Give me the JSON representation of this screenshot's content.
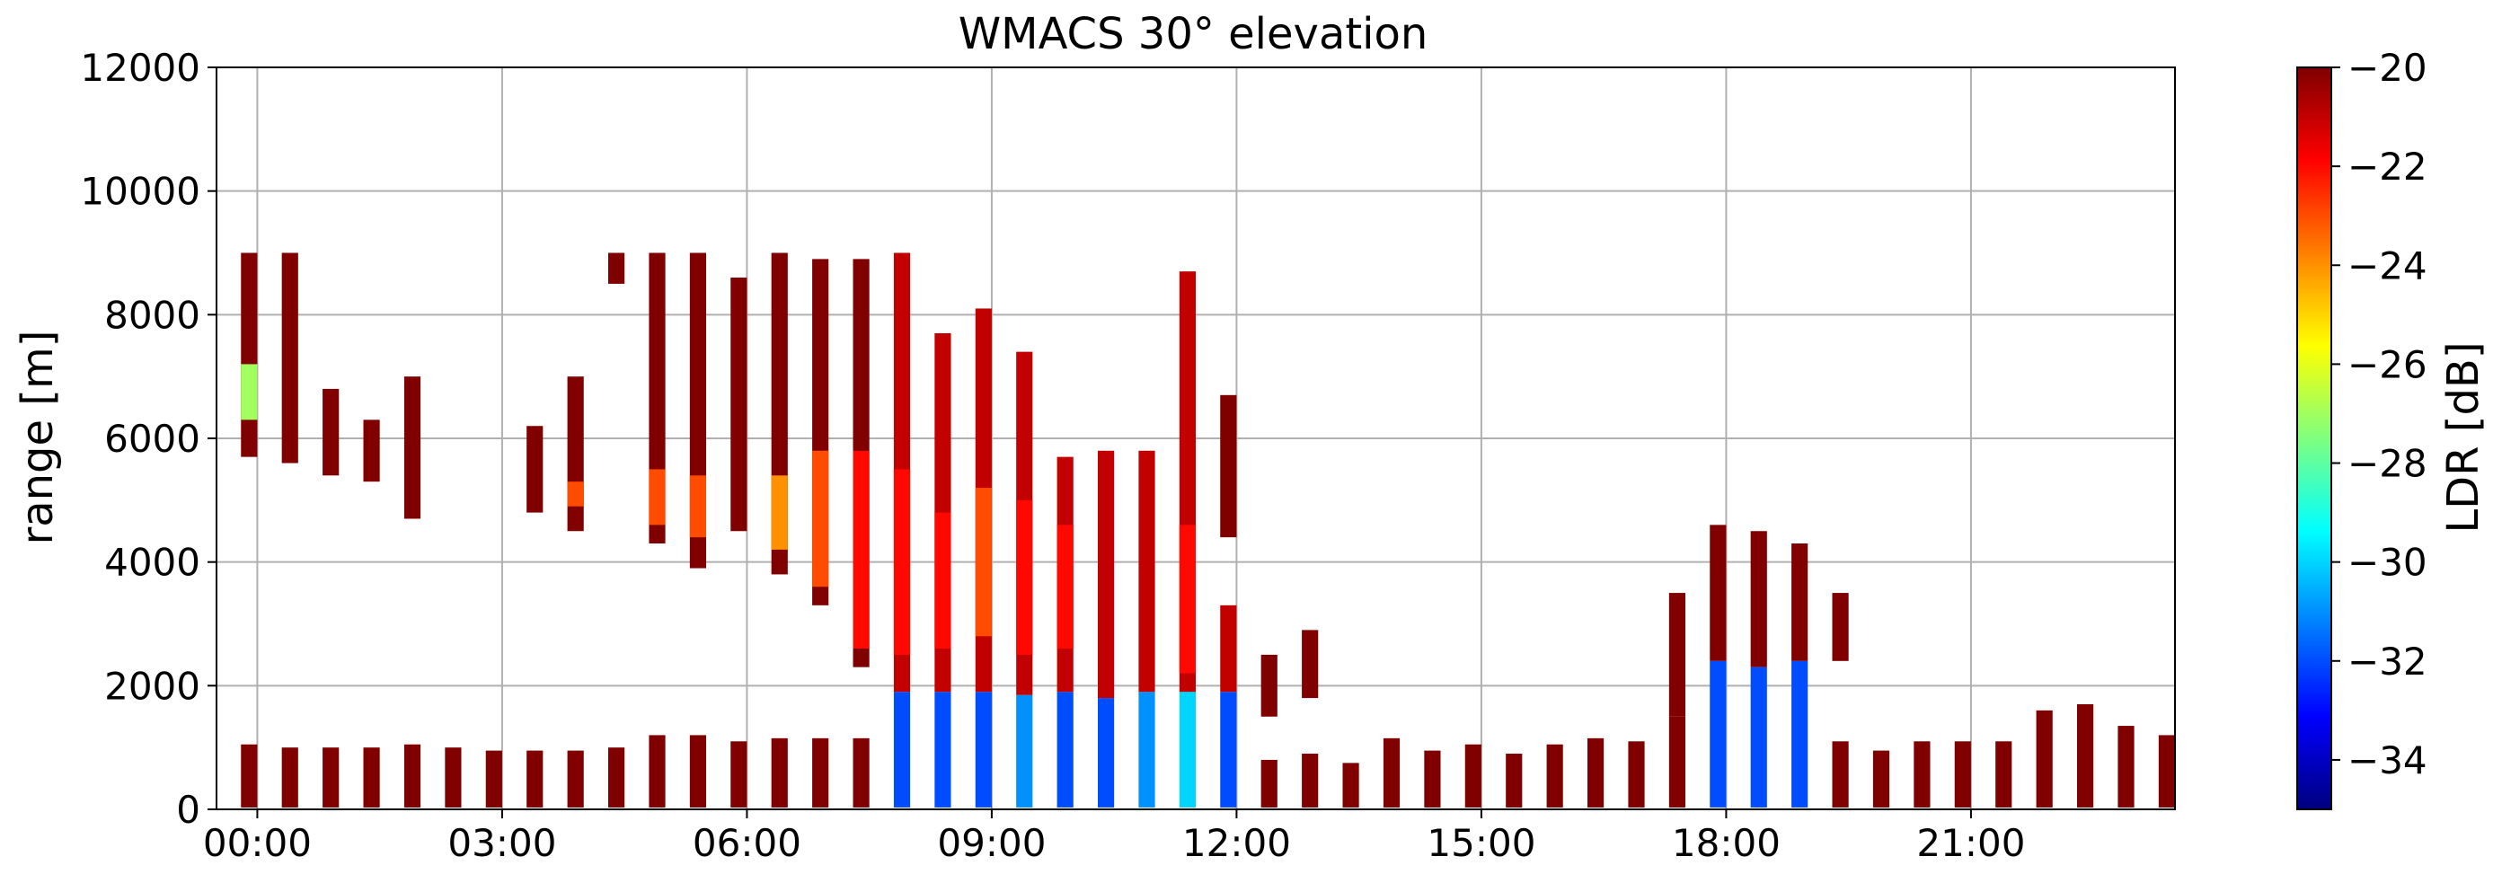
{
  "chart_data": {
    "type": "heatmap",
    "title": "WMACS 30° elevation",
    "xlabel": "",
    "ylabel": "range [m]",
    "xlim": [
      -0.5,
      23.5
    ],
    "ylim": [
      0,
      12000
    ],
    "grid": true,
    "x_ticks": [
      0,
      3,
      6,
      9,
      12,
      15,
      18,
      21
    ],
    "x_tick_labels": [
      "00:00",
      "03:00",
      "06:00",
      "09:00",
      "12:00",
      "15:00",
      "18:00",
      "21:00"
    ],
    "y_ticks": [
      0,
      2000,
      4000,
      6000,
      8000,
      10000,
      12000
    ],
    "y_tick_labels": [
      "0",
      "2000",
      "4000",
      "6000",
      "8000",
      "10000",
      "12000"
    ],
    "colorbar": {
      "label": "LDR [dB]",
      "range": [
        -35,
        -20
      ],
      "ticks": [
        -20,
        -22,
        -24,
        -26,
        -28,
        -30,
        -32,
        -34
      ],
      "tick_labels": [
        "−20",
        "−22",
        "−24",
        "−26",
        "−28",
        "−30",
        "−32",
        "−34"
      ],
      "colormap": "jet",
      "colors": [
        "#00007f",
        "#0000ff",
        "#007fff",
        "#00ffff",
        "#7fff7f",
        "#ffff00",
        "#ff7f00",
        "#ff0000",
        "#7f0000"
      ]
    },
    "scans": [
      {
        "t": -0.1,
        "w": 0.2,
        "segs": [
          [
            30,
            1050,
            -20
          ],
          [
            5700,
            9000,
            -20
          ],
          [
            6300,
            7200,
            -27
          ]
        ]
      },
      {
        "t": 0.4,
        "w": 0.2,
        "segs": [
          [
            30,
            1000,
            -20
          ],
          [
            5600,
            9000,
            -20
          ]
        ]
      },
      {
        "t": 0.9,
        "w": 0.2,
        "segs": [
          [
            30,
            1000,
            -20
          ],
          [
            5400,
            6800,
            -20
          ]
        ]
      },
      {
        "t": 1.4,
        "w": 0.2,
        "segs": [
          [
            30,
            1000,
            -20
          ],
          [
            5300,
            6300,
            -20
          ]
        ]
      },
      {
        "t": 1.9,
        "w": 0.2,
        "segs": [
          [
            30,
            1050,
            -20
          ],
          [
            4700,
            7000,
            -20
          ]
        ]
      },
      {
        "t": 2.4,
        "w": 0.2,
        "segs": [
          [
            30,
            1000,
            -20
          ]
        ]
      },
      {
        "t": 2.9,
        "w": 0.2,
        "segs": [
          [
            30,
            950,
            -20
          ]
        ]
      },
      {
        "t": 3.4,
        "w": 0.2,
        "segs": [
          [
            30,
            950,
            -20
          ],
          [
            4800,
            6200,
            -20
          ]
        ]
      },
      {
        "t": 3.9,
        "w": 0.2,
        "segs": [
          [
            30,
            950,
            -20
          ],
          [
            4500,
            7000,
            -20
          ],
          [
            4900,
            5300,
            -23
          ]
        ]
      },
      {
        "t": 4.4,
        "w": 0.2,
        "segs": [
          [
            30,
            1000,
            -20
          ],
          [
            8500,
            9000,
            -20
          ]
        ]
      },
      {
        "t": 4.9,
        "w": 0.2,
        "segs": [
          [
            30,
            1200,
            -20
          ],
          [
            4300,
            9000,
            -20
          ],
          [
            4600,
            5500,
            -23
          ]
        ]
      },
      {
        "t": 5.4,
        "w": 0.2,
        "segs": [
          [
            30,
            1200,
            -20
          ],
          [
            3900,
            9000,
            -20
          ],
          [
            4400,
            5400,
            -23
          ]
        ]
      },
      {
        "t": 5.9,
        "w": 0.2,
        "segs": [
          [
            30,
            1100,
            -20
          ],
          [
            4500,
            8600,
            -20
          ]
        ]
      },
      {
        "t": 6.4,
        "w": 0.2,
        "segs": [
          [
            30,
            1150,
            -20
          ],
          [
            3800,
            9000,
            -20
          ],
          [
            4200,
            5400,
            -24
          ]
        ]
      },
      {
        "t": 6.9,
        "w": 0.2,
        "segs": [
          [
            30,
            1150,
            -20
          ],
          [
            3300,
            8900,
            -20
          ],
          [
            3600,
            5800,
            -23
          ]
        ]
      },
      {
        "t": 7.4,
        "w": 0.2,
        "segs": [
          [
            30,
            1150,
            -20
          ],
          [
            2300,
            8900,
            -20
          ],
          [
            2600,
            5800,
            -22
          ]
        ]
      },
      {
        "t": 7.9,
        "w": 0.2,
        "segs": [
          [
            30,
            1900,
            -32
          ],
          [
            1900,
            9000,
            -21
          ],
          [
            2500,
            5500,
            -22
          ]
        ]
      },
      {
        "t": 8.4,
        "w": 0.2,
        "segs": [
          [
            30,
            1900,
            -32
          ],
          [
            1900,
            7700,
            -21
          ],
          [
            2600,
            4800,
            -22
          ]
        ]
      },
      {
        "t": 8.9,
        "w": 0.2,
        "segs": [
          [
            30,
            1900,
            -32
          ],
          [
            1900,
            8100,
            -21
          ],
          [
            2800,
            5200,
            -23
          ]
        ]
      },
      {
        "t": 9.4,
        "w": 0.2,
        "segs": [
          [
            30,
            1850,
            -31
          ],
          [
            1850,
            7400,
            -21
          ],
          [
            2500,
            5000,
            -22
          ]
        ]
      },
      {
        "t": 9.9,
        "w": 0.2,
        "segs": [
          [
            30,
            1900,
            -32
          ],
          [
            1900,
            5700,
            -21
          ],
          [
            2600,
            4600,
            -22
          ]
        ]
      },
      {
        "t": 10.4,
        "w": 0.2,
        "segs": [
          [
            30,
            1800,
            -32
          ],
          [
            1800,
            5800,
            -21
          ]
        ]
      },
      {
        "t": 10.9,
        "w": 0.2,
        "segs": [
          [
            30,
            1900,
            -31
          ],
          [
            1900,
            5800,
            -21
          ]
        ]
      },
      {
        "t": 11.4,
        "w": 0.2,
        "segs": [
          [
            30,
            1900,
            -30
          ],
          [
            1900,
            8700,
            -21
          ],
          [
            2200,
            4600,
            -22
          ]
        ]
      },
      {
        "t": 11.9,
        "w": 0.2,
        "segs": [
          [
            30,
            1900,
            -32
          ],
          [
            1900,
            3300,
            -21
          ],
          [
            4400,
            6700,
            -20
          ]
        ]
      },
      {
        "t": 12.4,
        "w": 0.2,
        "segs": [
          [
            30,
            800,
            -20
          ],
          [
            1500,
            2500,
            -20
          ]
        ]
      },
      {
        "t": 12.9,
        "w": 0.2,
        "segs": [
          [
            30,
            900,
            -20
          ],
          [
            1800,
            2900,
            -20
          ]
        ]
      },
      {
        "t": 13.4,
        "w": 0.2,
        "segs": [
          [
            30,
            750,
            -20
          ]
        ]
      },
      {
        "t": 13.9,
        "w": 0.2,
        "segs": [
          [
            30,
            1150,
            -20
          ]
        ]
      },
      {
        "t": 14.4,
        "w": 0.2,
        "segs": [
          [
            30,
            950,
            -20
          ]
        ]
      },
      {
        "t": 14.9,
        "w": 0.2,
        "segs": [
          [
            30,
            1050,
            -20
          ]
        ]
      },
      {
        "t": 15.4,
        "w": 0.2,
        "segs": [
          [
            30,
            900,
            -20
          ]
        ]
      },
      {
        "t": 15.9,
        "w": 0.2,
        "segs": [
          [
            30,
            1050,
            -20
          ]
        ]
      },
      {
        "t": 16.4,
        "w": 0.2,
        "segs": [
          [
            30,
            1150,
            -20
          ]
        ]
      },
      {
        "t": 16.9,
        "w": 0.2,
        "segs": [
          [
            30,
            1100,
            -20
          ]
        ]
      },
      {
        "t": 17.4,
        "w": 0.2,
        "segs": [
          [
            30,
            1500,
            -20
          ],
          [
            1500,
            3500,
            -20
          ]
        ]
      },
      {
        "t": 17.9,
        "w": 0.2,
        "segs": [
          [
            30,
            2400,
            -32
          ],
          [
            2400,
            4600,
            -20
          ]
        ]
      },
      {
        "t": 18.4,
        "w": 0.2,
        "segs": [
          [
            30,
            2300,
            -32
          ],
          [
            2300,
            4500,
            -20
          ]
        ]
      },
      {
        "t": 18.9,
        "w": 0.2,
        "segs": [
          [
            30,
            2400,
            -32
          ],
          [
            2400,
            4300,
            -20
          ]
        ]
      },
      {
        "t": 19.4,
        "w": 0.2,
        "segs": [
          [
            30,
            1100,
            -20
          ],
          [
            2400,
            3500,
            -20
          ]
        ]
      },
      {
        "t": 19.9,
        "w": 0.2,
        "segs": [
          [
            30,
            950,
            -20
          ]
        ]
      },
      {
        "t": 20.4,
        "w": 0.2,
        "segs": [
          [
            30,
            1100,
            -20
          ]
        ]
      },
      {
        "t": 20.9,
        "w": 0.2,
        "segs": [
          [
            30,
            1100,
            -20
          ]
        ]
      },
      {
        "t": 21.4,
        "w": 0.2,
        "segs": [
          [
            30,
            1100,
            -20
          ]
        ]
      },
      {
        "t": 21.9,
        "w": 0.2,
        "segs": [
          [
            30,
            1600,
            -20
          ]
        ]
      },
      {
        "t": 22.4,
        "w": 0.2,
        "segs": [
          [
            30,
            1700,
            -20
          ]
        ]
      },
      {
        "t": 22.9,
        "w": 0.2,
        "segs": [
          [
            30,
            1350,
            -20
          ]
        ]
      },
      {
        "t": 23.4,
        "w": 0.2,
        "segs": [
          [
            30,
            1200,
            -20
          ]
        ]
      }
    ]
  }
}
